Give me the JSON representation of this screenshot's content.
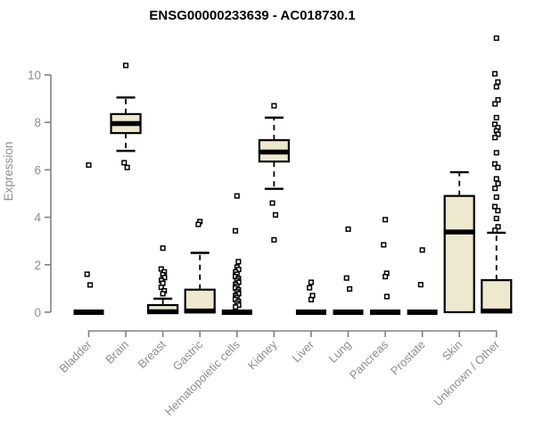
{
  "page": {
    "background": "#ffffff"
  },
  "chart_data": {
    "type": "boxplot",
    "title": "ENSG00000233639 - AC018730.1",
    "ylabel": "Expression",
    "xlabel": "",
    "ylim": [
      0,
      11.8
    ],
    "yticks": [
      0,
      2,
      4,
      6,
      8,
      10
    ],
    "grid": false,
    "legend": "none",
    "categories": [
      "Bladder",
      "Brain",
      "Breast",
      "Gastric",
      "Hematopoietic cells",
      "Kidney",
      "Liver",
      "Lung",
      "Pancreas",
      "Prostate",
      "Skin",
      "Unknown / Other"
    ],
    "series": [
      {
        "name": "Bladder",
        "q1": 0,
        "median": 0,
        "q3": 0,
        "whisker_low": 0,
        "whisker_high": 0,
        "outliers": [
          6.2,
          1.6,
          1.15
        ]
      },
      {
        "name": "Brain",
        "q1": 7.55,
        "median": 7.95,
        "q3": 8.35,
        "whisker_low": 6.8,
        "whisker_high": 9.05,
        "outliers": [
          10.4,
          6.3,
          6.1
        ]
      },
      {
        "name": "Breast",
        "q1": 0,
        "median": 0.02,
        "q3": 0.3,
        "whisker_low": 0,
        "whisker_high": 0.57,
        "outliers": [
          2.7,
          1.82,
          1.7,
          1.58,
          1.46,
          1.34,
          1.22,
          1.05,
          0.9,
          0.78
        ]
      },
      {
        "name": "Gastric",
        "q1": 0,
        "median": 0.05,
        "q3": 0.95,
        "whisker_low": 0,
        "whisker_high": 2.5,
        "outliers": [
          3.82,
          3.7
        ]
      },
      {
        "name": "Hematopoietic cells",
        "q1": 0,
        "median": 0,
        "q3": 0,
        "whisker_low": 0,
        "whisker_high": 0,
        "outliers": [
          4.9,
          3.43,
          2.13,
          1.9,
          1.8,
          1.7,
          1.6,
          1.5,
          1.42,
          1.34,
          1.26,
          1.18,
          1.1,
          1.02,
          0.94,
          0.86,
          0.78,
          0.7,
          0.62,
          0.54,
          0.46,
          0.38,
          0.3,
          0.22
        ]
      },
      {
        "name": "Kidney",
        "q1": 6.35,
        "median": 6.75,
        "q3": 7.25,
        "whisker_low": 5.2,
        "whisker_high": 8.2,
        "outliers": [
          8.7,
          4.6,
          4.1,
          3.05
        ]
      },
      {
        "name": "Liver",
        "q1": 0,
        "median": 0,
        "q3": 0,
        "whisker_low": 0,
        "whisker_high": 0,
        "outliers": [
          1.26,
          1.03,
          0.7,
          0.53
        ]
      },
      {
        "name": "Lung",
        "q1": 0,
        "median": 0,
        "q3": 0,
        "whisker_low": 0,
        "whisker_high": 0,
        "outliers": [
          3.5,
          1.44,
          0.98
        ]
      },
      {
        "name": "Pancreas",
        "q1": 0,
        "median": 0,
        "q3": 0,
        "whisker_low": 0,
        "whisker_high": 0,
        "outliers": [
          3.9,
          2.84,
          1.64,
          1.5,
          0.66
        ]
      },
      {
        "name": "Prostate",
        "q1": 0,
        "median": 0,
        "q3": 0,
        "whisker_low": 0,
        "whisker_high": 0,
        "outliers": [
          2.62,
          1.16
        ]
      },
      {
        "name": "Skin",
        "q1": 0,
        "median": 3.38,
        "q3": 4.9,
        "whisker_low": 0,
        "whisker_high": 5.9,
        "outliers": []
      },
      {
        "name": "Unknown / Other",
        "q1": 0,
        "median": 0.05,
        "q3": 1.35,
        "whisker_low": 0,
        "whisker_high": 3.35,
        "outliers": [
          11.55,
          10.05,
          9.7,
          9.5,
          8.95,
          8.78,
          8.2,
          7.92,
          7.78,
          7.64,
          7.5,
          7.36,
          6.72,
          6.25,
          6.1,
          5.62,
          5.42,
          5.22,
          4.85,
          4.45,
          4.28,
          3.95,
          3.6,
          3.45
        ]
      }
    ],
    "colors": {
      "box_fill": "#EDE8CE",
      "box_stroke": "#000000",
      "median": "#000000",
      "outlier_stroke": "#000000",
      "axis_line": "#828282",
      "axis_text": "#8e8e8e",
      "title": "#000000",
      "background": "#ffffff"
    }
  }
}
